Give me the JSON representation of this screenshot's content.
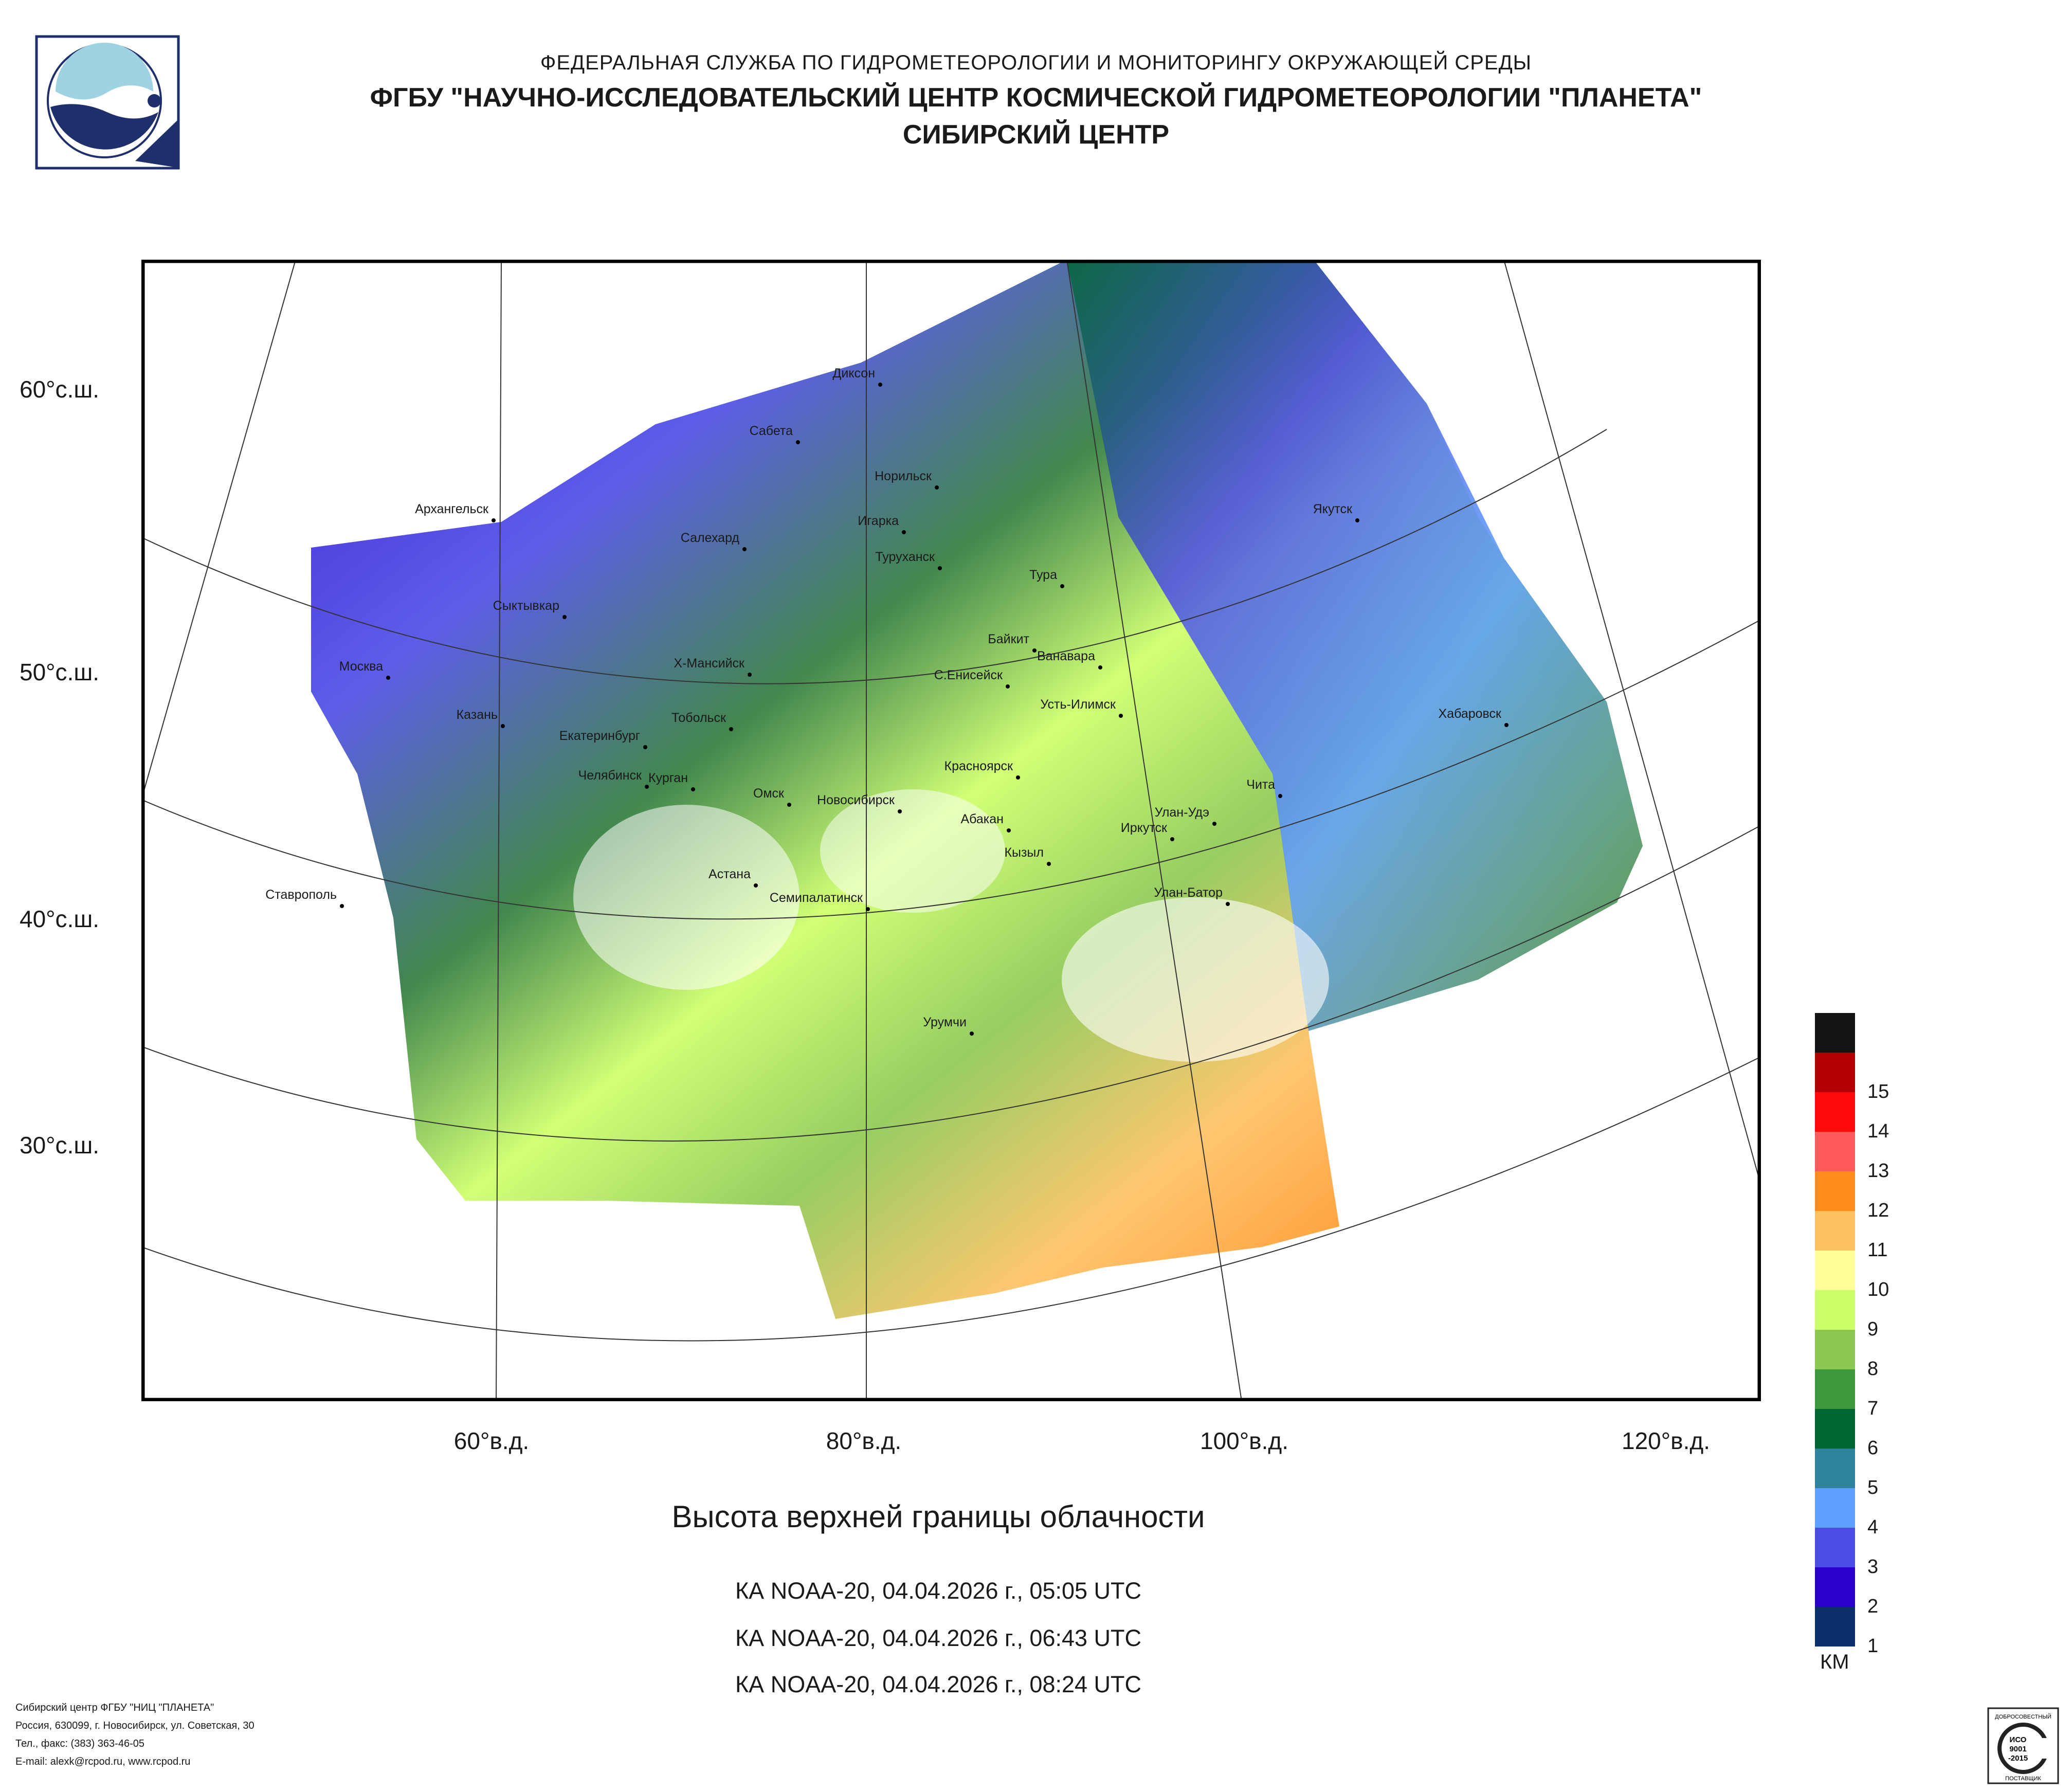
{
  "header": {
    "line1": "ФЕДЕРАЛЬНАЯ СЛУЖБА ПО ГИДРОМЕТЕОРОЛОГИИ И МОНИТОРИНГУ ОКРУЖАЮЩЕЙ СРЕДЫ",
    "line2": "ФГБУ \"НАУЧНО-ИССЛЕДОВАТЕЛЬСКИЙ ЦЕНТР КОСМИЧЕСКОЙ ГИДРОМЕТЕОРОЛОГИИ \"ПЛАНЕТА\"",
    "line3": "СИБИРСКИЙ ЦЕНТР"
  },
  "map": {
    "lat_labels": [
      "60°с.ш.",
      "50°с.ш.",
      "40°с.ш.",
      "30°с.ш."
    ],
    "lon_labels": [
      "60°в.д.",
      "80°в.д.",
      "100°в.д.",
      "120°в.д."
    ],
    "cities": [
      {
        "name": "Диксон",
        "lat": 73.5,
        "lon": 80.4
      },
      {
        "name": "Сабета",
        "lat": 71.3,
        "lon": 72.1
      },
      {
        "name": "Норильск",
        "lat": 69.3,
        "lon": 88.2
      },
      {
        "name": "Архангельск",
        "lat": 64.5,
        "lon": 40.5
      },
      {
        "name": "Игарка",
        "lat": 67.5,
        "lon": 86.6
      },
      {
        "name": "Салехард",
        "lat": 66.5,
        "lon": 66.6
      },
      {
        "name": "Туруханск",
        "lat": 65.8,
        "lon": 87.9
      },
      {
        "name": "Якутск",
        "lat": 62.0,
        "lon": 129.7
      },
      {
        "name": "Тура",
        "lat": 64.3,
        "lon": 100.2
      },
      {
        "name": "Сыктывкар",
        "lat": 61.7,
        "lon": 50.8
      },
      {
        "name": "Байкит",
        "lat": 61.7,
        "lon": 96.4
      },
      {
        "name": "Ванавара",
        "lat": 60.3,
        "lon": 102.3
      },
      {
        "name": "Москва",
        "lat": 55.8,
        "lon": 37.6
      },
      {
        "name": "Х-Мансийск",
        "lat": 61.0,
        "lon": 69.0
      },
      {
        "name": "С.Енисейск",
        "lat": 58.5,
        "lon": 92.2
      },
      {
        "name": "Усть-Илимск",
        "lat": 58.0,
        "lon": 102.7
      },
      {
        "name": "Хабаровск",
        "lat": 48.5,
        "lon": 135.1
      },
      {
        "name": "Казань",
        "lat": 55.8,
        "lon": 49.1
      },
      {
        "name": "Тобольск",
        "lat": 58.2,
        "lon": 68.3
      },
      {
        "name": "Екатеринбург",
        "lat": 56.8,
        "lon": 60.6
      },
      {
        "name": "Красноярск",
        "lat": 56.0,
        "lon": 92.9
      },
      {
        "name": "Челябинск",
        "lat": 55.2,
        "lon": 61.4
      },
      {
        "name": "Чита",
        "lat": 52.0,
        "lon": 113.5
      },
      {
        "name": "Курган",
        "lat": 55.4,
        "lon": 65.3
      },
      {
        "name": "Омск",
        "lat": 55.0,
        "lon": 73.4
      },
      {
        "name": "Новосибирск",
        "lat": 55.0,
        "lon": 82.9
      },
      {
        "name": "Абакан",
        "lat": 53.7,
        "lon": 91.4
      },
      {
        "name": "Улан-Удэ",
        "lat": 51.8,
        "lon": 107.6
      },
      {
        "name": "Иркутск",
        "lat": 52.3,
        "lon": 104.3
      },
      {
        "name": "Кызыл",
        "lat": 51.7,
        "lon": 94.4
      },
      {
        "name": "Ставрополь",
        "lat": 45.0,
        "lon": 42.0
      },
      {
        "name": "Астана",
        "lat": 51.2,
        "lon": 71.4
      },
      {
        "name": "Улан-Батор",
        "lat": 47.9,
        "lon": 106.9
      },
      {
        "name": "Семипалатинск",
        "lat": 50.4,
        "lon": 80.2
      },
      {
        "name": "Урумчи",
        "lat": 43.8,
        "lon": 87.6
      }
    ]
  },
  "caption": {
    "title": "Высота верхней границы облачности",
    "passes": [
      "КА NOAA-20, 04.04.2026 г., 05:05 UTC",
      "КА NOAA-20, 04.04.2026 г., 06:43 UTC",
      "КА NOAA-20, 04.04.2026 г., 08:24 UTC"
    ]
  },
  "legend": {
    "unit": "КМ",
    "levels": [
      {
        "label": "",
        "color": "#141414"
      },
      {
        "label": "15",
        "color": "#b30000"
      },
      {
        "label": "14",
        "color": "#ff0a0a"
      },
      {
        "label": "13",
        "color": "#ff5a5a"
      },
      {
        "label": "12",
        "color": "#ff8c1a"
      },
      {
        "label": "11",
        "color": "#ffc060"
      },
      {
        "label": "10",
        "color": "#ffff99"
      },
      {
        "label": "9",
        "color": "#ccff66"
      },
      {
        "label": "8",
        "color": "#8cc850"
      },
      {
        "label": "7",
        "color": "#3c9a3c"
      },
      {
        "label": "6",
        "color": "#006633"
      },
      {
        "label": "5",
        "color": "#2e8299"
      },
      {
        "label": "4",
        "color": "#5ea0ff"
      },
      {
        "label": "3",
        "color": "#4b4be6"
      },
      {
        "label": "2",
        "color": "#2a00cc"
      },
      {
        "label": "1",
        "color": "#0a2f6b"
      }
    ]
  },
  "footer": {
    "line1": "Сибирский центр ФГБУ \"НИЦ \"ПЛАНЕТА\"",
    "line2": "Россия, 630099, г. Новосибирск, ул. Советская, 30",
    "line3": "Тел., факс: (383) 363-46-05",
    "line4": "E-mail: alexk@rcpod.ru, www.rcpod.ru"
  },
  "iso_badge": {
    "top_text": "ДОБРОСОВЕСТНЫЙ",
    "line1": "ИСО",
    "line2": "9001",
    "line3": "-2015",
    "bottom_text": "ПОСТАВЩИК"
  }
}
